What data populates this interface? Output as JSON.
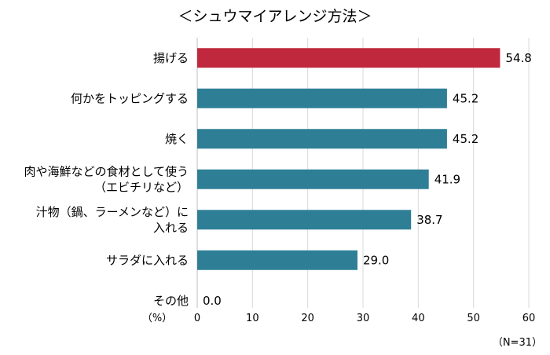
{
  "chart_data": {
    "type": "bar",
    "orientation": "horizontal",
    "title": "＜シュウマイアレンジ方法＞",
    "categories": [
      [
        "揚げる"
      ],
      [
        "何かをトッピングする"
      ],
      [
        "焼く"
      ],
      [
        "肉や海鮮などの食材として使う",
        "（エビチリなど）"
      ],
      [
        "汁物（鍋、ラーメンなど）に",
        "入れる"
      ],
      [
        "サラダに入れる"
      ],
      [
        "その他"
      ]
    ],
    "values": [
      54.8,
      45.2,
      45.2,
      41.9,
      38.7,
      29.0,
      0.0
    ],
    "value_labels": [
      "54.8",
      "45.2",
      "45.2",
      "41.9",
      "38.7",
      "29.0",
      "0.0"
    ],
    "highlight_index": 0,
    "xlim": [
      0,
      60
    ],
    "xticks": [
      "0",
      "10",
      "20",
      "30",
      "40",
      "50",
      "60"
    ],
    "unit_label": "（%）",
    "sample_note": "（N=31）",
    "grid": true,
    "colors": {
      "highlight": "#c0283d",
      "bar": "#2e7f96",
      "grid": "#d9d9d9",
      "axis": "#bfbfbf"
    }
  }
}
